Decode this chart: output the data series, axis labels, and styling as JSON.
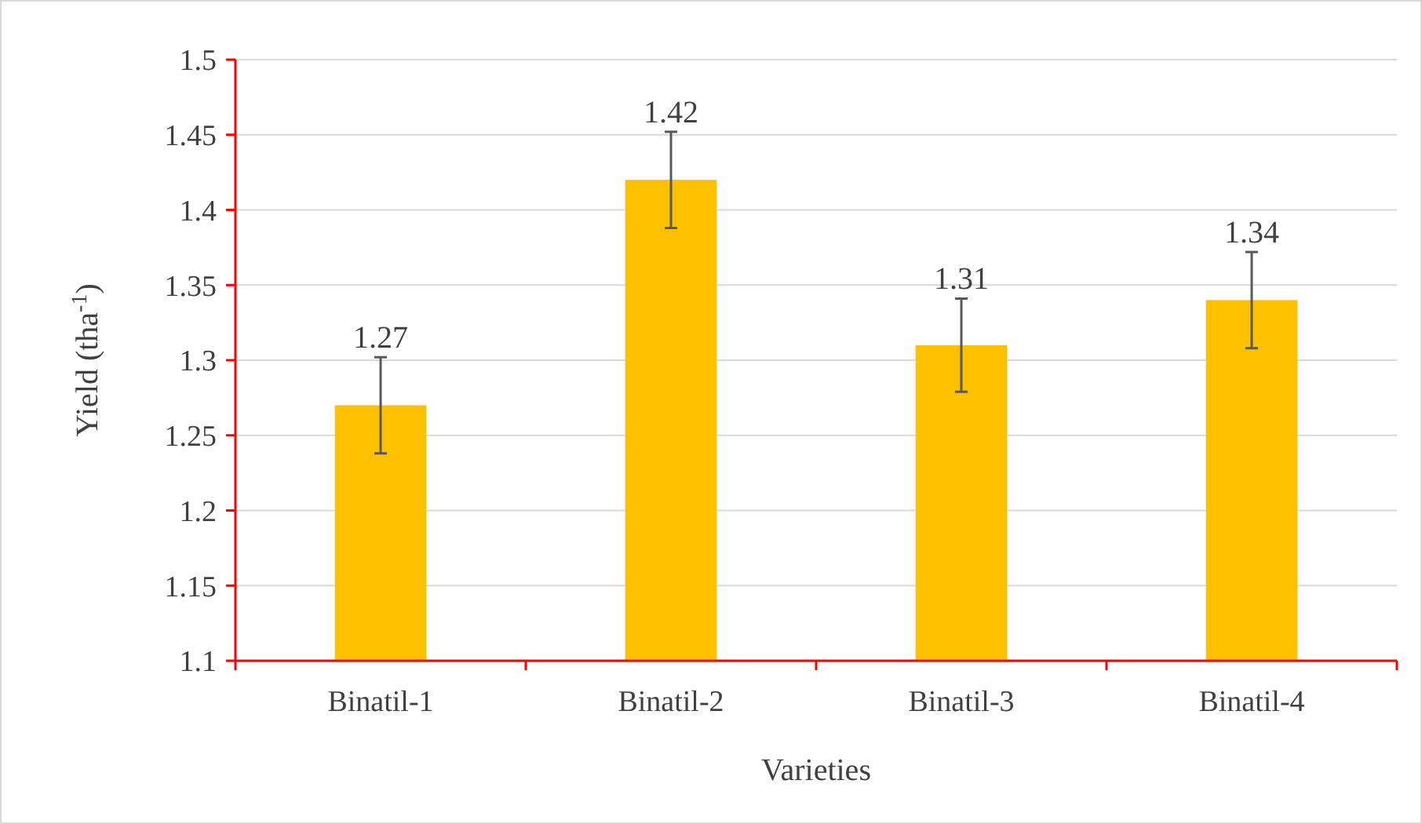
{
  "chart_data": {
    "type": "bar",
    "xlabel": "Varieties",
    "ylabel": "Yield (tha$^{-1}$)",
    "categories": [
      "Binatil-1",
      "Binatil-2",
      "Binatil-3",
      "Binatil-4"
    ],
    "values": [
      1.27,
      1.42,
      1.31,
      1.34
    ],
    "color": "#ffc000",
    "errors": [
      0.032,
      0.032,
      0.031,
      0.032
    ],
    "data_labels": true,
    "ylim": [
      1.1,
      1.5
    ],
    "yticks": [
      1.1,
      {
        "value": 1.15,
        "label": "1.15"
      },
      1.2,
      {
        "value": 1.25,
        "label": "1.25"
      },
      {
        "value": 1.3,
        "label": "1.3"
      },
      {
        "value": 1.35,
        "label": "1.35"
      },
      1.4,
      {
        "value": 1.45,
        "label": "1.45"
      },
      1.5
    ],
    "grid": "y"
  }
}
